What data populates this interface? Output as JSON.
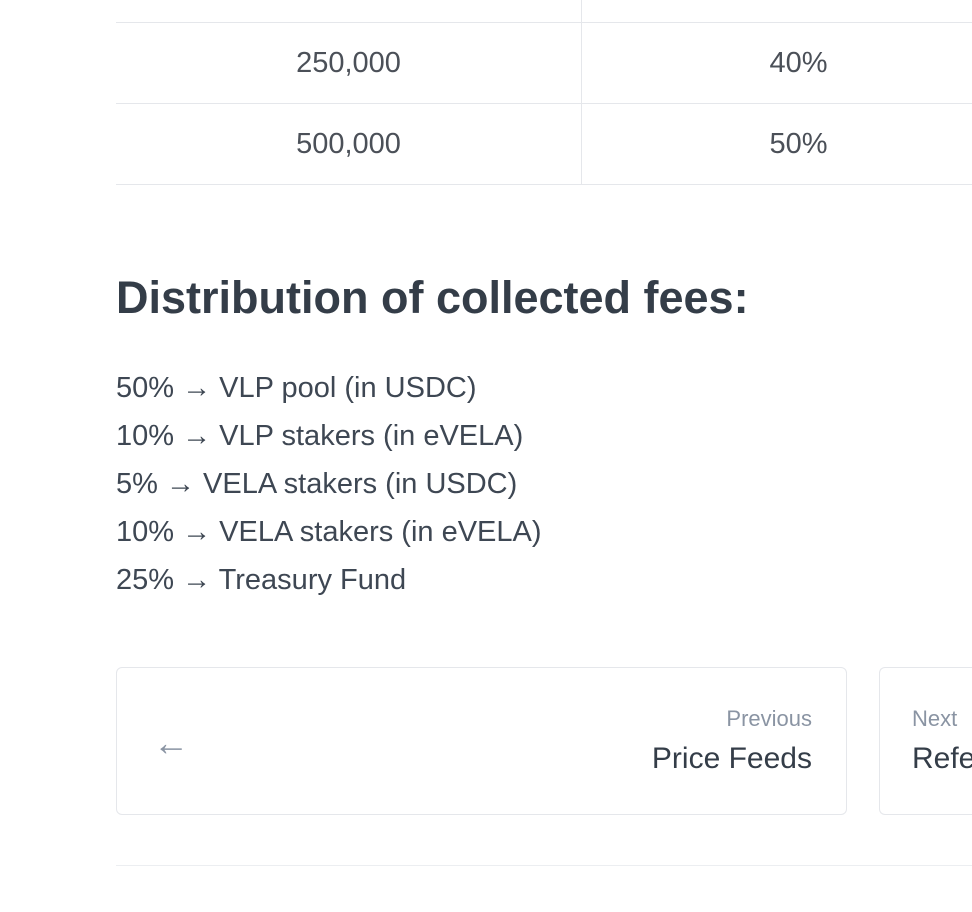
{
  "table": {
    "rows": [
      [
        "",
        ""
      ],
      [
        "250,000",
        "40%"
      ],
      [
        "500,000",
        "50%"
      ]
    ]
  },
  "heading": "Distribution of collected fees:",
  "fees": [
    "50% → VLP pool (in USDC)",
    "10% → VLP stakers (in eVELA)",
    "5% → VELA stakers (in USDC)",
    "10% → VELA stakers (in eVELA)",
    "25% → Treasury Fund"
  ],
  "pagination": {
    "prev_label": "Previous",
    "prev_title": "Price Feeds",
    "next_label": "Next",
    "next_title": "Refe"
  }
}
